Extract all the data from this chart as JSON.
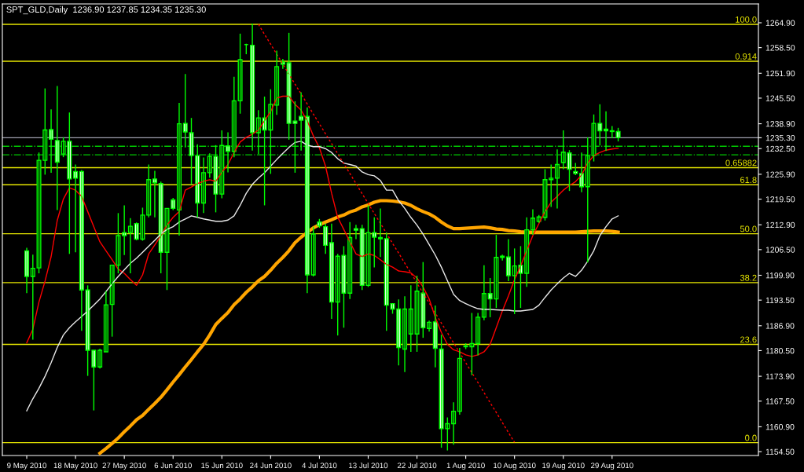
{
  "chart_data": {
    "type": "candlestick",
    "title": "SPT_GLD,Daily  1236.90 1237.85 1234.35 1235.30",
    "categories": [
      "9 May 2010",
      null,
      null,
      null,
      null,
      null,
      null,
      null,
      "18 May 2010",
      null,
      null,
      null,
      null,
      null,
      null,
      null,
      "27 May 2010",
      null,
      null,
      null,
      null,
      null,
      null,
      null,
      "6 Jun 2010",
      null,
      null,
      null,
      null,
      null,
      null,
      null,
      "15 Jun 2010",
      null,
      null,
      null,
      null,
      null,
      null,
      null,
      "24 Jun 2010",
      null,
      null,
      null,
      null,
      null,
      null,
      null,
      "4 Jul 2010",
      null,
      null,
      null,
      null,
      null,
      null,
      null,
      "13 Jul 2010",
      null,
      null,
      null,
      null,
      null,
      null,
      null,
      "22 Jul 2010",
      null,
      null,
      null,
      null,
      null,
      null,
      null,
      "1 Aug 2010",
      null,
      null,
      null,
      null,
      null,
      null,
      null,
      "10 Aug 2010",
      null,
      null,
      null,
      null,
      null,
      null,
      null,
      "19 Aug 2010",
      null,
      null,
      null,
      null,
      null,
      null,
      null,
      "29 Aug 2010",
      null
    ],
    "ohlc": [
      [
        1206.2,
        1207.0,
        1195.3,
        1199.6
      ],
      [
        1199.6,
        1205.2,
        1183.3,
        1201.7
      ],
      [
        1201.8,
        1231.5,
        1200.4,
        1229.5
      ],
      [
        1229.5,
        1248.0,
        1225.8,
        1237.3
      ],
      [
        1237.4,
        1242.6,
        1226.3,
        1234.9
      ],
      [
        1234.6,
        1248.6,
        1216.7,
        1229.0
      ],
      [
        1231.1,
        1235.4,
        1230.3,
        1234.4
      ],
      [
        1234.4,
        1241.8,
        1205.4,
        1224.7
      ],
      [
        1226.6,
        1228.4,
        1205.8,
        1224.9
      ],
      [
        1226.6,
        1227.0,
        1185.6,
        1196.1
      ],
      [
        1196.1,
        1197.3,
        1174.0,
        1180.6
      ],
      [
        1180.6,
        1180.6,
        1165.1,
        1176.3
      ],
      [
        1176.3,
        1181.0,
        1175.9,
        1180.6
      ],
      [
        1180.2,
        1195.8,
        1180.2,
        1192.3
      ],
      [
        1192.4,
        1202.5,
        1184.1,
        1202.5
      ],
      [
        1202.5,
        1215.9,
        1200.4,
        1210.1
      ],
      [
        1210.9,
        1217.9,
        1205.1,
        1210.1
      ],
      [
        1210.9,
        1214.6,
        1200.4,
        1212.5
      ],
      [
        1213.2,
        1213.5,
        1208.9,
        1209.2
      ],
      [
        1209.2,
        1217.3,
        1208.8,
        1215.4
      ],
      [
        1215.4,
        1228.4,
        1214.8,
        1224.5
      ],
      [
        1224.7,
        1226.8,
        1214.8,
        1223.7
      ],
      [
        1223.5,
        1224.0,
        1200.4,
        1205.8
      ],
      [
        1205.8,
        1217.1,
        1196.1,
        1217.1
      ],
      [
        1219.3,
        1219.8,
        1216.7,
        1217.1
      ],
      [
        1216.7,
        1244.3,
        1210.1,
        1238.9
      ],
      [
        1239.0,
        1251.7,
        1232.8,
        1236.8
      ],
      [
        1236.6,
        1240.4,
        1223.3,
        1230.7
      ],
      [
        1230.7,
        1233.6,
        1214.8,
        1218.5
      ],
      [
        1218.5,
        1230.2,
        1215.9,
        1226.3
      ],
      [
        1226.3,
        1231.3,
        1225.0,
        1230.5
      ],
      [
        1230.5,
        1233.4,
        1216.1,
        1220.8
      ],
      [
        1220.8,
        1237.2,
        1219.7,
        1233.3
      ],
      [
        1233.2,
        1236.7,
        1226.4,
        1231.8
      ],
      [
        1231.8,
        1251.0,
        1230.3,
        1244.8
      ],
      [
        1244.8,
        1262.1,
        1241.5,
        1255.4
      ],
      [
        1259.3,
        1259.5,
        1256.8,
        1259.3
      ],
      [
        1259.1,
        1264.7,
        1232.0,
        1236.6
      ],
      [
        1236.6,
        1242.4,
        1231.1,
        1240.4
      ],
      [
        1240.4,
        1245.9,
        1217.9,
        1237.3
      ],
      [
        1237.3,
        1247.8,
        1226.0,
        1243.9
      ],
      [
        1243.7,
        1257.7,
        1241.2,
        1253.6
      ],
      [
        1254.8,
        1255.6,
        1253.0,
        1254.2
      ],
      [
        1254.6,
        1262.3,
        1234.8,
        1239.0
      ],
      [
        1239.6,
        1244.7,
        1226.3,
        1239.0
      ],
      [
        1240.8,
        1247.0,
        1232.0,
        1239.8
      ],
      [
        1240.8,
        1243.1,
        1195.3,
        1200.0
      ],
      [
        1200.0,
        1212.4,
        1199.6,
        1210.5
      ],
      [
        1213.6,
        1214.4,
        1212.1,
        1212.6
      ],
      [
        1212.4,
        1213.2,
        1205.4,
        1207.6
      ],
      [
        1208.3,
        1213.2,
        1188.7,
        1193.0
      ],
      [
        1193.0,
        1205.4,
        1184.4,
        1204.8
      ],
      [
        1205.0,
        1207.4,
        1186.4,
        1195.3
      ],
      [
        1195.3,
        1213.6,
        1193.8,
        1209.6
      ],
      [
        1211.9,
        1212.9,
        1209.2,
        1211.5
      ],
      [
        1211.9,
        1212.9,
        1196.1,
        1197.3
      ],
      [
        1197.3,
        1217.9,
        1196.9,
        1210.9
      ],
      [
        1210.9,
        1214.8,
        1201.9,
        1209.7
      ],
      [
        1209.6,
        1217.1,
        1204.6,
        1209.3
      ],
      [
        1209.3,
        1210.9,
        1185.6,
        1192.2
      ],
      [
        1192.6,
        1192.7,
        1190.0,
        1191.2
      ],
      [
        1191.2,
        1193.7,
        1176.7,
        1181.3
      ],
      [
        1180.9,
        1194.5,
        1175.0,
        1191.2
      ],
      [
        1184.8,
        1197.3,
        1180.2,
        1191.2
      ],
      [
        1184.8,
        1199.8,
        1180.2,
        1195.8
      ],
      [
        1195.3,
        1203.3,
        1183.8,
        1186.4
      ],
      [
        1186.2,
        1188.2,
        1185.4,
        1187.8
      ],
      [
        1187.9,
        1192.1,
        1176.2,
        1181.1
      ],
      [
        1180.9,
        1184.6,
        1155.5,
        1160.4
      ],
      [
        1160.4,
        1163.3,
        1154.8,
        1161.7
      ],
      [
        1161.7,
        1167.2,
        1156.3,
        1164.9
      ],
      [
        1164.9,
        1181.2,
        1164.0,
        1178.5
      ],
      [
        1181.5,
        1182.4,
        1180.9,
        1181.7
      ],
      [
        1181.5,
        1190.2,
        1174.2,
        1182.3
      ],
      [
        1182.3,
        1190.2,
        1179.3,
        1189.1
      ],
      [
        1189.1,
        1202.5,
        1188.3,
        1195.2
      ],
      [
        1195.2,
        1199.2,
        1189.1,
        1193.8
      ],
      [
        1193.8,
        1210.3,
        1191.5,
        1204.5
      ],
      [
        1204.5,
        1205.2,
        1203.7,
        1204.8
      ],
      [
        1204.6,
        1209.2,
        1198.4,
        1199.8
      ],
      [
        1199.8,
        1206.8,
        1189.9,
        1202.3
      ],
      [
        1202.5,
        1207.4,
        1191.5,
        1200.4
      ],
      [
        1200.4,
        1214.8,
        1196.9,
        1211.6
      ],
      [
        1211.6,
        1216.9,
        1210.3,
        1214.6
      ],
      [
        1213.8,
        1215.4,
        1213.4,
        1214.9
      ],
      [
        1214.8,
        1227.2,
        1214.0,
        1224.5
      ],
      [
        1224.5,
        1228.4,
        1217.5,
        1224.9
      ],
      [
        1224.9,
        1232.3,
        1217.1,
        1228.4
      ],
      [
        1228.9,
        1237.2,
        1227.2,
        1231.6
      ],
      [
        1231.4,
        1232.1,
        1221.6,
        1227.2
      ],
      [
        1226.6,
        1228.8,
        1225.7,
        1226.1
      ],
      [
        1226.1,
        1231.5,
        1221.3,
        1222.7
      ],
      [
        1222.7,
        1235.4,
        1203.2,
        1230.7
      ],
      [
        1230.7,
        1241.3,
        1229.2,
        1239.0
      ],
      [
        1239.0,
        1243.9,
        1233.3,
        1237.1
      ],
      [
        1237.5,
        1242.1,
        1231.9,
        1237.1
      ],
      [
        1237.1,
        1238.3,
        1235.2,
        1236.9
      ],
      [
        1236.9,
        1237.85,
        1234.35,
        1235.3
      ]
    ],
    "series": [
      {
        "type": "line",
        "color": "#ff0000",
        "line_style": "solid",
        "values": [
          1182.5,
          1186.0,
          1193.0,
          1198.4,
          1204.7,
          1214.0,
          1219.5,
          1222.4,
          1221.8,
          1220.2,
          1216.3,
          1212.4,
          1208.5,
          1206.2,
          1203.9,
          1201.5,
          1200.4,
          1198.8,
          1197.3,
          1200.0,
          1205.4,
          1207.7,
          1210.1,
          1212.8,
          1214.8,
          1216.3,
          1221.8,
          1222.6,
          1223.5,
          1224.1,
          1224.5,
          1224.1,
          1226.4,
          1228.4,
          1231.5,
          1234.2,
          1235.4,
          1236.2,
          1237.3,
          1239.7,
          1242.0,
          1245.5,
          1246.0,
          1246.0,
          1243.9,
          1242.4,
          1239.7,
          1235.8,
          1232.7,
          1228.0,
          1221.0,
          1214.8,
          1211.7,
          1208.5,
          1205.4,
          1204.7,
          1205.4,
          1205.0,
          1203.9,
          1202.7,
          1202.0,
          1201.0,
          1200.8,
          1200.5,
          1199.2,
          1196.9,
          1193.8,
          1189.1,
          1185.2,
          1182.1,
          1180.7,
          1180.2,
          1179.4,
          1179.0,
          1179.4,
          1180.2,
          1182.1,
          1186.4,
          1190.7,
          1194.6,
          1198.8,
          1202.3,
          1206.2,
          1210.1,
          1213.2,
          1216.3,
          1218.7,
          1220.2,
          1221.8,
          1223.0,
          1224.0,
          1225.7,
          1228.8,
          1230.7,
          1231.5,
          1232.1,
          1232.4,
          1232.6
        ]
      },
      {
        "type": "line",
        "color": "#e8e8e8",
        "line_style": "solid",
        "values": [
          1165.0,
          1168.1,
          1170.8,
          1173.9,
          1177.4,
          1181.3,
          1184.5,
          1186.4,
          1187.9,
          1189.3,
          1190.7,
          1192.2,
          1193.8,
          1195.7,
          1197.7,
          1199.6,
          1201.3,
          1203.0,
          1204.3,
          1205.8,
          1207.4,
          1208.9,
          1210.5,
          1211.7,
          1212.4,
          1213.6,
          1214.4,
          1215.2,
          1214.8,
          1214.4,
          1214.1,
          1213.8,
          1213.8,
          1214.1,
          1215.2,
          1217.9,
          1221.0,
          1223.3,
          1224.9,
          1226.3,
          1228.0,
          1229.7,
          1231.3,
          1232.8,
          1234.1,
          1234.4,
          1233.4,
          1233.0,
          1233.0,
          1232.5,
          1231.5,
          1229.9,
          1228.8,
          1228.4,
          1228.0,
          1226.5,
          1225.8,
          1225.5,
          1224.3,
          1221.8,
          1221.8,
          1219.1,
          1217.1,
          1214.8,
          1212.8,
          1210.5,
          1207.8,
          1205.1,
          1202.0,
          1198.5,
          1195.0,
          1193.4,
          1192.6,
          1191.9,
          1191.3,
          1191.1,
          1191.1,
          1191.0,
          1190.9,
          1190.9,
          1190.7,
          1190.7,
          1190.9,
          1191.1,
          1192.2,
          1194.2,
          1196.1,
          1197.7,
          1199.2,
          1200.4,
          1199.6,
          1201.2,
          1203.5,
          1206.2,
          1210.1,
          1212.4,
          1214.4,
          1215.2
        ]
      },
      {
        "type": "line",
        "color": "#ffa500",
        "line_style": "solid",
        "values": [
          null,
          null,
          null,
          null,
          null,
          null,
          null,
          null,
          null,
          null,
          null,
          null,
          1154.1,
          1155.3,
          1156.6,
          1158.0,
          1159.6,
          1161.1,
          1162.7,
          1163.8,
          1165.4,
          1166.9,
          1168.5,
          1170.4,
          1172.4,
          1174.3,
          1176.3,
          1178.2,
          1180.2,
          1182.1,
          1184.5,
          1187.2,
          1188.8,
          1190.3,
          1192.3,
          1193.8,
          1195.5,
          1196.9,
          1198.5,
          1199.6,
          1201.2,
          1203.0,
          1204.5,
          1206.2,
          1208.3,
          1209.7,
          1210.9,
          1212.1,
          1212.9,
          1213.6,
          1214.2,
          1214.9,
          1215.4,
          1216.2,
          1216.7,
          1217.5,
          1218.0,
          1218.7,
          1219.1,
          1219.1,
          1219.0,
          1218.8,
          1218.5,
          1217.9,
          1217.0,
          1216.3,
          1215.7,
          1214.8,
          1213.6,
          1212.6,
          1211.9,
          1211.9,
          1212.0,
          1212.1,
          1212.2,
          1212.3,
          1212.1,
          1211.8,
          1211.7,
          1211.4,
          1211.3,
          1211.1,
          1211.0,
          1211.0,
          1211.0,
          1211.0,
          1211.0,
          1211.0,
          1211.0,
          1211.0,
          1211.0,
          1211.1,
          1211.2,
          1211.3,
          1211.3,
          1211.3,
          1211.2,
          1211.0
        ]
      },
      {
        "type": "line",
        "color": "#ff0000",
        "line_style": "dotted",
        "values": [
          null,
          null,
          null,
          null,
          null,
          null,
          null,
          null,
          null,
          null,
          null,
          null,
          null,
          null,
          null,
          null,
          null,
          null,
          null,
          null,
          null,
          null,
          null,
          null,
          null,
          null,
          null,
          null,
          null,
          null,
          null,
          null,
          null,
          null,
          null,
          null,
          null,
          null,
          1264.5,
          1261.9,
          1259.4,
          1256.8,
          1254.3,
          1251.7,
          1249.1,
          1246.6,
          1244.0,
          1241.4,
          1238.9,
          1236.3,
          1233.8,
          1231.2,
          1228.6,
          1226.1,
          1223.5,
          1220.9,
          1218.4,
          1215.8,
          1213.3,
          1210.7,
          1208.1,
          1205.6,
          1203.0,
          1200.5,
          1197.9,
          1195.3,
          1192.8,
          1190.2,
          1187.6,
          1185.1,
          1182.5,
          1180.0,
          1177.4,
          1174.8,
          1172.3,
          1169.7,
          1167.1,
          1164.6,
          1162.0,
          1159.4,
          1156.9,
          null,
          null,
          null,
          null,
          null,
          null,
          null,
          null,
          null,
          null,
          null,
          null,
          null,
          null,
          null,
          null,
          null
        ]
      }
    ],
    "ylim": [
      1153.5,
      1269.75
    ],
    "yticks": [
      {
        "value": 1264.9,
        "label": "1264.90"
      },
      {
        "value": 1258.5,
        "label": "1258.50"
      },
      {
        "value": 1251.9,
        "label": "1251.90"
      },
      {
        "value": 1245.5,
        "label": "1245.50"
      },
      {
        "value": 1238.9,
        "label": "1238.90"
      },
      {
        "value": 1235.3,
        "label": "1235.30"
      },
      {
        "value": 1232.5,
        "label": "1232.50"
      },
      {
        "value": 1225.9,
        "label": "1225.90"
      },
      {
        "value": 1219.5,
        "label": "1219.50"
      },
      {
        "value": 1212.9,
        "label": "1212.90"
      },
      {
        "value": 1206.5,
        "label": "1206.50"
      },
      {
        "value": 1199.9,
        "label": "1199.90"
      },
      {
        "value": 1193.5,
        "label": "1193.50"
      },
      {
        "value": 1186.9,
        "label": "1186.90"
      },
      {
        "value": 1180.5,
        "label": "1180.50"
      },
      {
        "value": 1173.9,
        "label": "1173.90"
      },
      {
        "value": 1167.5,
        "label": "1167.50"
      },
      {
        "value": 1160.9,
        "label": "1160.90"
      },
      {
        "value": 1154.5,
        "label": "1154.50"
      }
    ],
    "ref_lines": [
      {
        "axis": "y",
        "value": 1264.5,
        "color": "#e6e600",
        "line_style": "solid"
      },
      {
        "axis": "y",
        "value": 1255.0,
        "color": "#e6e600",
        "line_style": "solid"
      },
      {
        "axis": "y",
        "value": 1227.6,
        "color": "#e6e600",
        "line_style": "solid"
      },
      {
        "axis": "y",
        "value": 1223.2,
        "color": "#e6e600",
        "line_style": "solid"
      },
      {
        "axis": "y",
        "value": 1210.6,
        "color": "#e6e600",
        "line_style": "solid"
      },
      {
        "axis": "y",
        "value": 1198.0,
        "color": "#e6e600",
        "line_style": "solid"
      },
      {
        "axis": "y",
        "value": 1182.1,
        "color": "#e6e600",
        "line_style": "solid"
      },
      {
        "axis": "y",
        "value": 1156.8,
        "color": "#e6e600",
        "line_style": "solid"
      },
      {
        "axis": "y",
        "value": 1235.3,
        "color": "#a0a0b0",
        "line_style": "solid"
      },
      {
        "axis": "y",
        "value": 1233.1,
        "color": "#00c800",
        "line_style": "dashdot"
      },
      {
        "axis": "y",
        "value": 1230.9,
        "color": "#00c800",
        "line_style": "dashdot"
      }
    ],
    "annotations": [
      {
        "text": "100.0",
        "y": 1264.5
      },
      {
        "text": "0.914",
        "y": 1255.0
      },
      {
        "text": "0.65882",
        "y": 1227.6
      },
      {
        "text": "61.8",
        "y": 1223.2
      },
      {
        "text": "50.0",
        "y": 1210.6
      },
      {
        "text": "38.2",
        "y": 1198.0
      },
      {
        "text": "23.6",
        "y": 1182.1
      },
      {
        "text": "0.0",
        "y": 1156.8
      }
    ]
  }
}
